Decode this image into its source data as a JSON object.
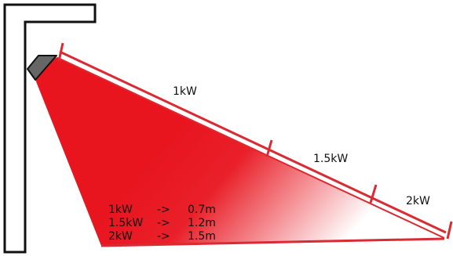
{
  "labels": {
    "power_1": "1kW",
    "power_2": "1.5kW",
    "power_3": "2kW"
  },
  "table": [
    {
      "power": "1kW",
      "arrow": "->",
      "distance": "0.7m"
    },
    {
      "power": "1.5kW",
      "arrow": "->",
      "distance": "1.2m"
    },
    {
      "power": "2kW",
      "arrow": "->",
      "distance": "1.5m"
    }
  ],
  "colors": {
    "heat": "#e8141e",
    "beam_edge": "#d92b33",
    "wall": "#111111",
    "heater_body": "#666666"
  }
}
